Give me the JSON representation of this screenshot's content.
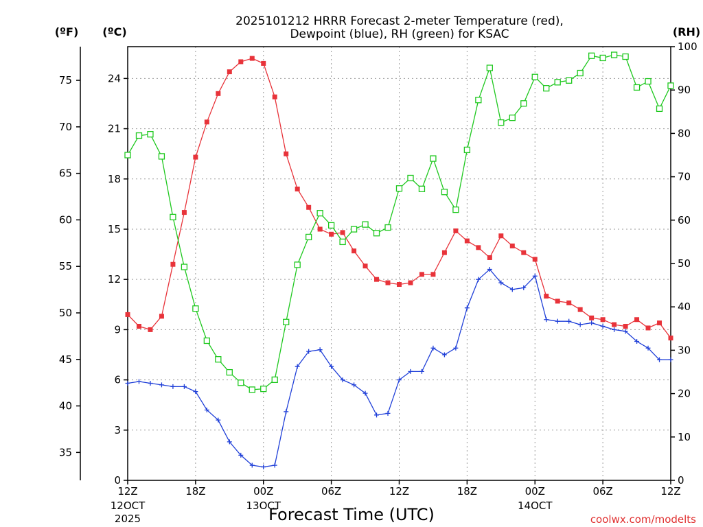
{
  "chart_data": {
    "type": "line",
    "title_line1": "2025101212 HRRR Forecast 2-meter Temperature (red),",
    "title_line2": "Dewpoint (blue), RH (green) for KSAC",
    "xlabel": "Forecast Time (UTC)",
    "credit": "coolwx.com/modelts",
    "unit_left_outer": "(ºF)",
    "unit_left_inner": "(ºC)",
    "unit_right": "(RH)",
    "x_hours_range": [
      0,
      48
    ],
    "y_celsius_range": [
      0,
      25.9
    ],
    "y_rh_range": [
      0,
      100
    ],
    "x_ticks": [
      {
        "hour": 0,
        "label": "12Z",
        "sub1": "12OCT",
        "sub2": "2025"
      },
      {
        "hour": 6,
        "label": "18Z",
        "sub1": "",
        "sub2": ""
      },
      {
        "hour": 12,
        "label": "00Z",
        "sub1": "13OCT",
        "sub2": ""
      },
      {
        "hour": 18,
        "label": "06Z",
        "sub1": "",
        "sub2": ""
      },
      {
        "hour": 24,
        "label": "12Z",
        "sub1": "",
        "sub2": ""
      },
      {
        "hour": 30,
        "label": "18Z",
        "sub1": "",
        "sub2": ""
      },
      {
        "hour": 36,
        "label": "00Z",
        "sub1": "14OCT",
        "sub2": ""
      },
      {
        "hour": 42,
        "label": "06Z",
        "sub1": "",
        "sub2": ""
      },
      {
        "hour": 48,
        "label": "12Z",
        "sub1": "",
        "sub2": ""
      }
    ],
    "y_celsius_ticks": [
      0,
      3,
      6,
      9,
      12,
      15,
      18,
      21,
      24
    ],
    "y_fahrenheit_ticks": [
      35,
      40,
      45,
      50,
      55,
      60,
      65,
      70,
      75
    ],
    "y_rh_ticks": [
      0,
      10,
      20,
      30,
      40,
      50,
      60,
      70,
      80,
      90,
      100
    ],
    "grid": true,
    "series": [
      {
        "name": "Temperature",
        "axis": "celsius",
        "color": "#e8333a",
        "marker": "filled-square",
        "values": [
          9.9,
          9.2,
          9.0,
          9.8,
          12.9,
          16.0,
          19.3,
          21.4,
          23.1,
          24.4,
          25.0,
          25.2,
          24.9,
          22.9,
          19.5,
          17.4,
          16.3,
          15.0,
          14.7,
          14.8,
          13.7,
          12.8,
          12.0,
          11.8,
          11.7,
          11.8,
          12.3,
          12.3,
          13.6,
          14.9,
          14.3,
          13.9,
          13.3,
          14.6,
          14.0,
          13.6,
          13.2,
          11.0,
          10.7,
          10.6,
          10.2,
          9.7,
          9.6,
          9.3,
          9.2,
          9.6,
          9.1,
          9.4,
          8.5
        ]
      },
      {
        "name": "Dewpoint",
        "axis": "celsius",
        "color": "#1f3fd8",
        "marker": "plus",
        "values": [
          5.8,
          5.9,
          5.8,
          5.7,
          5.6,
          5.6,
          5.3,
          4.2,
          3.6,
          2.3,
          1.5,
          0.9,
          0.8,
          0.9,
          4.1,
          6.8,
          7.7,
          7.8,
          6.8,
          6.0,
          5.7,
          5.2,
          3.9,
          4.0,
          6.0,
          6.5,
          6.5,
          7.9,
          7.5,
          7.9,
          10.3,
          12.0,
          12.6,
          11.8,
          11.4,
          11.5,
          12.2,
          9.6,
          9.5,
          9.5,
          9.3,
          9.4,
          9.2,
          9.0,
          8.9,
          8.3,
          7.9,
          7.2,
          7.2
        ]
      },
      {
        "name": "RH",
        "axis": "rh",
        "color": "#1ec81e",
        "marker": "open-square",
        "values": [
          75,
          79.5,
          79.8,
          74.7,
          60.7,
          49.2,
          39.6,
          32.2,
          27.9,
          24.9,
          22.5,
          20.9,
          21.1,
          23.2,
          36.5,
          49.7,
          56.1,
          61.6,
          58.8,
          55.0,
          57.9,
          59.0,
          57.0,
          58.3,
          67.3,
          69.7,
          67.2,
          74.2,
          66.5,
          62.4,
          76.2,
          87.7,
          95.1,
          82.5,
          83.6,
          86.9,
          93.0,
          90.4,
          91.8,
          92.2,
          93.9,
          97.9,
          97.4,
          98.1,
          97.7,
          90.6,
          92.0,
          85.7,
          91.0
        ]
      }
    ]
  }
}
